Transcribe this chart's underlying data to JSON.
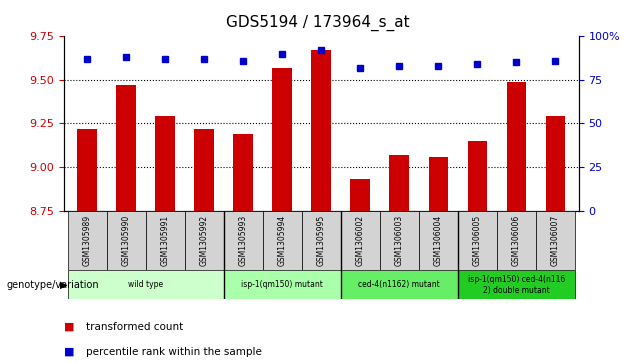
{
  "title": "GDS5194 / 173964_s_at",
  "samples": [
    "GSM1305989",
    "GSM1305990",
    "GSM1305991",
    "GSM1305992",
    "GSM1305993",
    "GSM1305994",
    "GSM1305995",
    "GSM1306002",
    "GSM1306003",
    "GSM1306004",
    "GSM1306005",
    "GSM1306006",
    "GSM1306007"
  ],
  "transformed_counts": [
    9.22,
    9.47,
    9.29,
    9.22,
    9.19,
    9.57,
    9.67,
    8.93,
    9.07,
    9.06,
    9.15,
    9.49,
    9.29
  ],
  "percentile_ranks": [
    87,
    88,
    87,
    87,
    86,
    90,
    92,
    82,
    83,
    83,
    84,
    85,
    86
  ],
  "ylim_left": [
    8.75,
    9.75
  ],
  "ylim_right": [
    0,
    100
  ],
  "yticks_left": [
    8.75,
    9.0,
    9.25,
    9.5,
    9.75
  ],
  "yticks_right": [
    0,
    25,
    50,
    75,
    100
  ],
  "bar_color": "#cc0000",
  "dot_color": "#0000cc",
  "grid_color": "#000000",
  "groups": [
    {
      "label": "wild type",
      "start": 0,
      "end": 3,
      "color": "#ccffcc"
    },
    {
      "label": "isp-1(qm150) mutant",
      "start": 4,
      "end": 6,
      "color": "#aaffaa"
    },
    {
      "label": "ced-4(n1162) mutant",
      "start": 7,
      "end": 9,
      "color": "#66ee66"
    },
    {
      "label": "isp-1(qm150) ced-4(n116\n2) double mutant",
      "start": 10,
      "end": 12,
      "color": "#22cc22"
    }
  ],
  "legend_bar_label": "transformed count",
  "legend_dot_label": "percentile rank within the sample",
  "genotype_label": "genotype/variation",
  "bar_color_label": "#cc0000",
  "dot_color_label": "#0000cc",
  "xlabel_color": "#cc0000",
  "right_axis_color": "#0000cc",
  "background_color": "#ffffff",
  "plot_bg_color": "#ffffff",
  "cell_bg_color": "#d3d3d3"
}
